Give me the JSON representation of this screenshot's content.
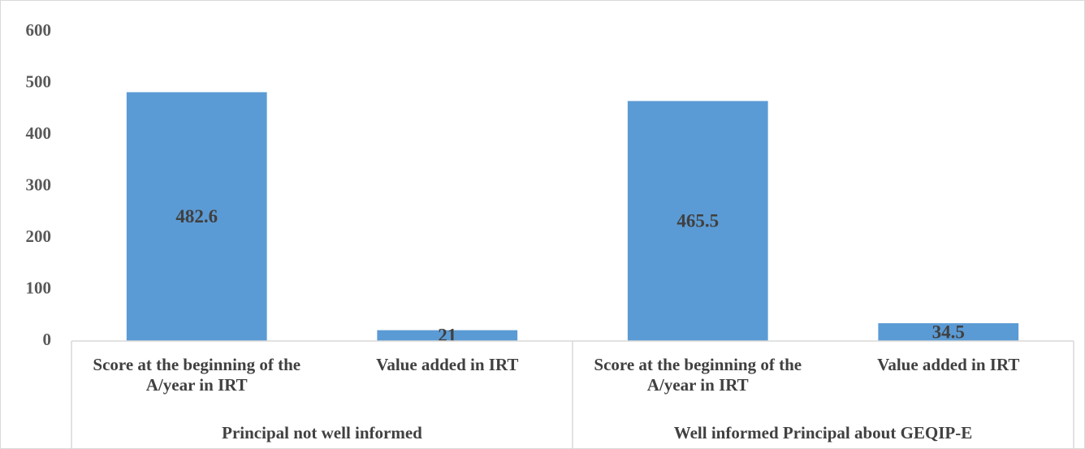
{
  "chart_data": {
    "type": "bar",
    "categories": [
      "Score at the beginning of the A/year in IRT",
      "Value added in IRT",
      "Score at the beginning of the A/year in IRT",
      "Value added in IRT"
    ],
    "groups": [
      "Principal not well informed",
      "Well informed Principal about GEQIP-E"
    ],
    "values": [
      482.6,
      21,
      465.5,
      34.5
    ],
    "color": "#5b9bd5",
    "ylim": [
      0,
      600
    ],
    "yticks": [
      0,
      100,
      200,
      300,
      400,
      500,
      600
    ],
    "grid": false
  }
}
